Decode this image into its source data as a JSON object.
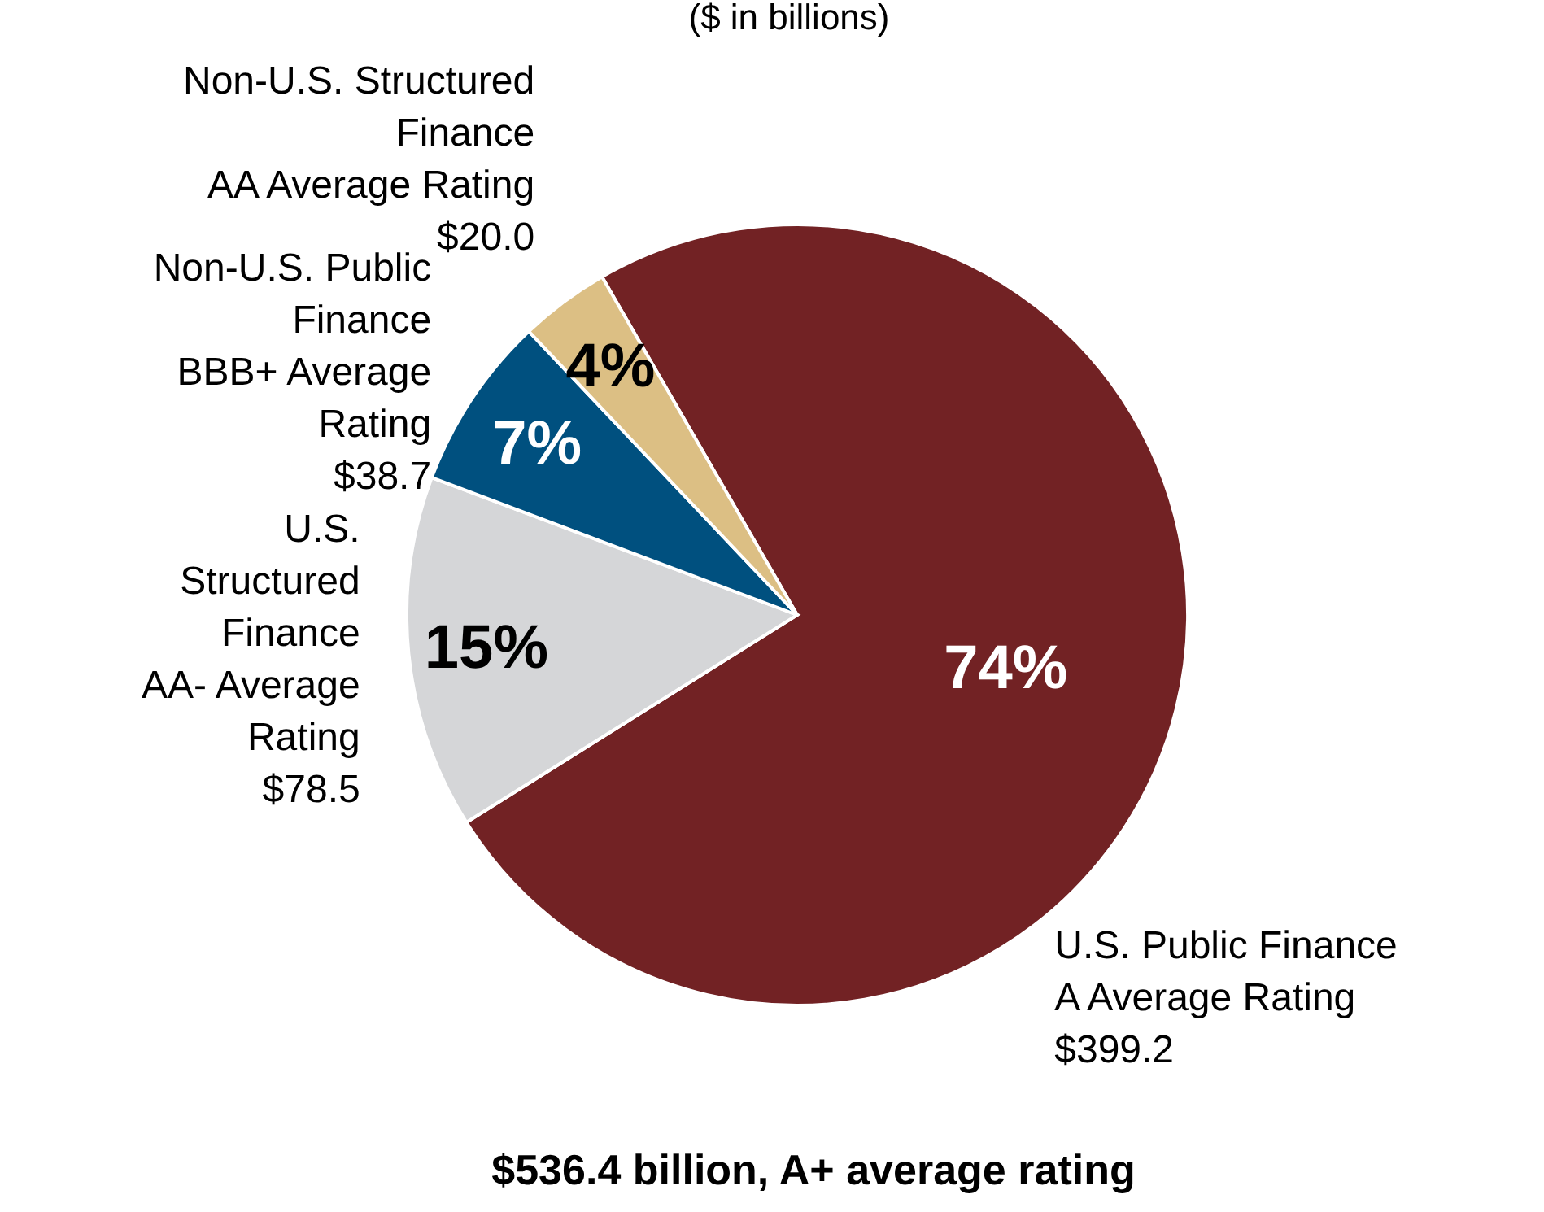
{
  "chart_data": {
    "type": "pie",
    "subtitle": "($ in billions)",
    "categories": [
      "U.S. Public Finance\nA Average Rating",
      "U.S.\nStructured\nFinance\nAA- Average\nRating",
      "Non-U.S. Public\nFinance\nBBB+ Average\nRating",
      "Non-U.S. Structured\nFinance\nAA Average Rating"
    ],
    "values": [
      399.2,
      78.5,
      38.7,
      20.0
    ],
    "value_labels": [
      "$399.2",
      "$78.5",
      "$38.7",
      "$20.0"
    ],
    "colors": [
      "#722224",
      "#d5d6d8",
      "#00507f",
      "#dcbf84"
    ],
    "annotations": [
      "74%",
      "15%",
      "7%",
      "4%",
      "$536.4 billion, A+ average rating"
    ]
  }
}
